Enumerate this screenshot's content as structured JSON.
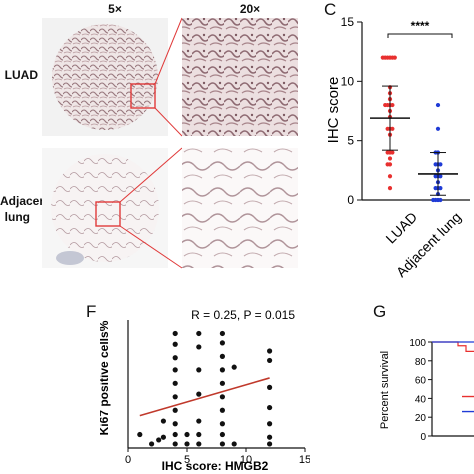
{
  "colors": {
    "luad": "#e8302f",
    "adjacent": "#1f3bd6",
    "trend": "#c0392b",
    "zoom_box": "#e03a3a",
    "tissue": "#b89a9e"
  },
  "panel_b": {
    "col_headers": [
      "5×",
      "20×"
    ],
    "row_labels": [
      "LUAD",
      "Adjacent",
      "lung"
    ]
  },
  "panel_c": {
    "letter": "C",
    "ylabel": "IHC score",
    "significance": "****",
    "y_ticks": [
      "0",
      "5",
      "10",
      "15"
    ]
  },
  "panel_f": {
    "letter": "F",
    "ylabel": "Ki67 positive cells%",
    "xlabel": "IHC score: HMGB2",
    "stat": "R = 0.25, P = 0.015",
    "x_ticks": [
      "0",
      "5",
      "10",
      "15"
    ]
  },
  "panel_g": {
    "letter": "G",
    "ylabel": "Percent survival",
    "y_ticks": [
      "0",
      "20",
      "40",
      "60",
      "80",
      "100"
    ]
  },
  "chart_data": [
    {
      "type": "scatter",
      "panel": "C",
      "ylabel": "IHC score",
      "ylim": [
        0,
        15
      ],
      "categories": [
        "LUAD",
        "Adjacent lung"
      ],
      "series": [
        {
          "name": "LUAD",
          "mean": 6.9,
          "sd_upper": 9.6,
          "sd_lower": 4.2,
          "values": [
            12,
            12,
            12,
            12,
            12,
            12,
            9.5,
            9,
            8.5,
            8,
            8,
            8,
            8,
            7.5,
            7,
            6,
            6,
            6,
            5.5,
            4,
            4,
            4,
            3.5,
            3,
            3,
            2,
            1
          ]
        },
        {
          "name": "Adjacent lung",
          "mean": 2.2,
          "sd_upper": 4.0,
          "sd_lower": 0.4,
          "values": [
            8,
            6,
            4,
            4,
            3,
            3,
            3,
            2.5,
            2,
            2,
            2,
            1.5,
            1,
            1,
            1,
            0.5,
            0,
            0,
            0,
            0
          ]
        }
      ]
    },
    {
      "type": "scatter",
      "panel": "F",
      "xlabel": "IHC score: HMGB2",
      "ylabel": "Ki67 positive cells%",
      "xlim": [
        0,
        15
      ],
      "ylim": [
        0,
        95
      ],
      "points": [
        [
          1,
          10
        ],
        [
          2,
          3
        ],
        [
          2.6,
          6
        ],
        [
          3,
          8
        ],
        [
          3,
          20
        ],
        [
          4,
          85
        ],
        [
          4,
          77
        ],
        [
          4,
          67
        ],
        [
          4,
          58
        ],
        [
          4,
          48
        ],
        [
          4,
          38
        ],
        [
          4,
          28
        ],
        [
          4,
          18
        ],
        [
          4,
          10
        ],
        [
          4,
          3
        ],
        [
          5,
          10
        ],
        [
          5,
          3
        ],
        [
          6,
          85
        ],
        [
          6,
          75
        ],
        [
          6,
          58
        ],
        [
          6,
          40
        ],
        [
          6,
          20
        ],
        [
          6,
          10
        ],
        [
          6,
          3
        ],
        [
          8,
          85
        ],
        [
          8,
          78
        ],
        [
          8,
          68
        ],
        [
          8,
          58
        ],
        [
          8,
          48
        ],
        [
          8,
          38
        ],
        [
          8,
          28
        ],
        [
          8,
          18
        ],
        [
          8,
          10
        ],
        [
          8,
          3
        ],
        [
          9,
          60
        ],
        [
          9,
          3
        ],
        [
          12,
          72
        ],
        [
          12,
          65
        ],
        [
          12,
          45
        ],
        [
          12,
          30
        ],
        [
          12,
          18
        ],
        [
          12,
          8
        ],
        [
          12,
          3
        ]
      ],
      "trend": [
        [
          1,
          24
        ],
        [
          12,
          52
        ]
      ]
    },
    {
      "type": "line",
      "panel": "G",
      "ylabel": "Percent survival",
      "ylim": [
        0,
        100
      ]
    }
  ]
}
